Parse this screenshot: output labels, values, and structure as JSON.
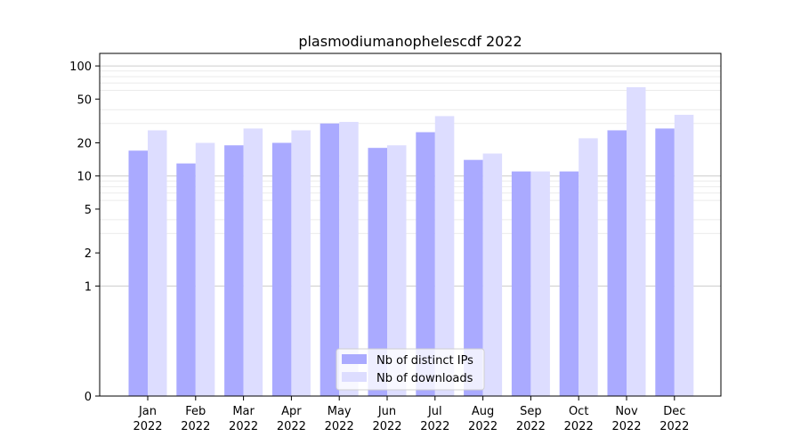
{
  "chart_data": {
    "type": "bar",
    "title": "plasmodiumanophelescdf 2022",
    "scale": "symlog",
    "categories": [
      [
        "Jan",
        "2022"
      ],
      [
        "Feb",
        "2022"
      ],
      [
        "Mar",
        "2022"
      ],
      [
        "Apr",
        "2022"
      ],
      [
        "May",
        "2022"
      ],
      [
        "Jun",
        "2022"
      ],
      [
        "Jul",
        "2022"
      ],
      [
        "Aug",
        "2022"
      ],
      [
        "Sep",
        "2022"
      ],
      [
        "Oct",
        "2022"
      ],
      [
        "Nov",
        "2022"
      ],
      [
        "Dec",
        "2022"
      ]
    ],
    "series": [
      {
        "name": "Nb of distinct IPs",
        "color": "#aaaaff",
        "values": [
          17,
          13,
          19,
          20,
          30,
          18,
          25,
          14,
          11,
          11,
          26,
          27
        ]
      },
      {
        "name": "Nb of downloads",
        "color": "#ddddff",
        "values": [
          26,
          20,
          27,
          26,
          31,
          19,
          35,
          16,
          11,
          22,
          64,
          36
        ]
      }
    ],
    "yticks": [
      0,
      1,
      2,
      5,
      10,
      20,
      50,
      100
    ],
    "ylim": [
      0,
      130
    ],
    "grid": true,
    "legend_position": "bottom-center"
  }
}
